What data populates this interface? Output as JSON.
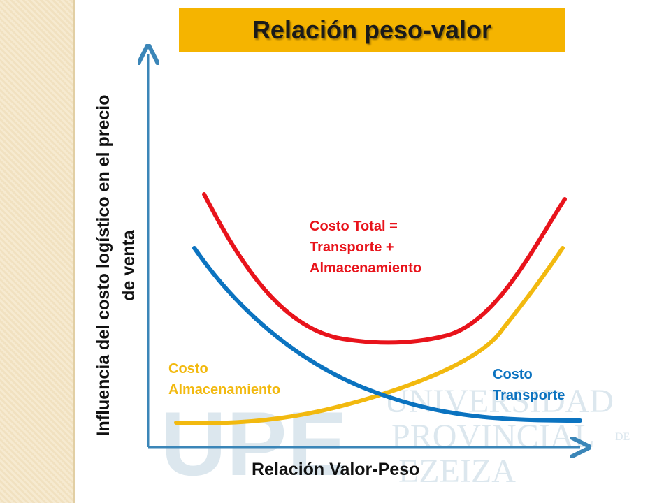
{
  "title": "Relación peso-valor",
  "axes": {
    "y_label": "Influencia del costo logístico en el precio de venta",
    "x_label": "Relación Valor-Peso"
  },
  "curves": {
    "total": {
      "label_lines": [
        "Costo Total =",
        "Transporte +",
        "Almacenamiento"
      ],
      "color": "#e8131b"
    },
    "almacenamiento": {
      "label_lines": [
        "Costo",
        "Almacenamiento"
      ],
      "color": "#f2b90f"
    },
    "transporte": {
      "label_lines": [
        "Costo",
        "Transporte"
      ],
      "color": "#0b73c0"
    }
  },
  "colors": {
    "axis": "#3b86b8",
    "title_bg": "#f5b400",
    "watermark": "#9cbcd0"
  },
  "watermark": {
    "logo": "UPE",
    "lines": [
      "UNIVERSIDAD",
      "PROVINCIAL",
      "EZEIZA"
    ],
    "small": "DE"
  }
}
